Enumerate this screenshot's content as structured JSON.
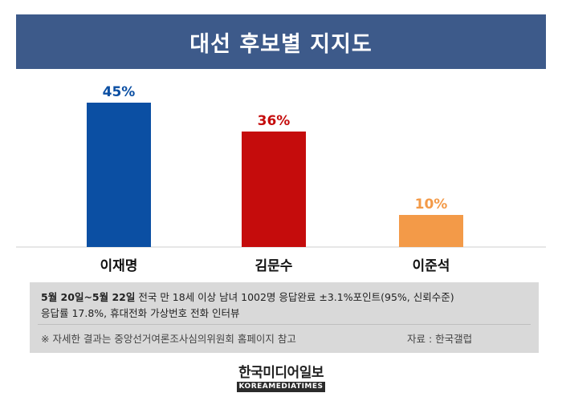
{
  "header": {
    "title": "대선 후보별 지지도"
  },
  "chart_data": {
    "type": "bar",
    "title": "대선 후보별 지지도",
    "categories": [
      "이재명",
      "김문수",
      "이준석"
    ],
    "values": [
      45,
      36,
      10
    ],
    "value_labels": [
      "45%",
      "36%",
      "10%"
    ],
    "colors": [
      "#0b4fa3",
      "#c50c0c",
      "#f39a48"
    ],
    "unit": "%",
    "ylim": [
      0,
      50
    ],
    "grid": false,
    "legend": "none"
  },
  "info": {
    "dates": "5월 20일~5월 22일",
    "method_line1": " 전국 만 18세 이상 남녀 1002명 응답완료 ±3.1%포인트(95%, 신뢰수준)",
    "method_line2": "응답률 17.8%, 휴대전화 가상번호 전화 인터뷰",
    "note": "※ 자세한 결과는 중앙선거여론조사심의위원회 홈페이지 참고",
    "source": "자료 : 한국갤럽"
  },
  "logo": {
    "korean": "한국미디어일보",
    "english": "KOREAMEDIATIMES"
  }
}
